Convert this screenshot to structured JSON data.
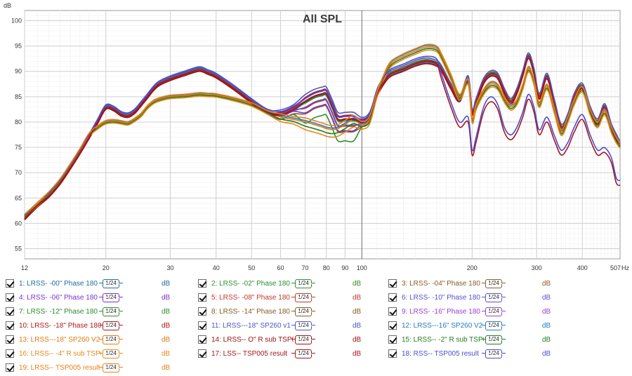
{
  "chart_data": {
    "type": "line",
    "title": "All SPL",
    "ylabel": "dB",
    "xlabel": "",
    "x_unit": "Hz",
    "xscale": "log",
    "xlim": [
      12,
      507
    ],
    "ylim": [
      53,
      102
    ],
    "grid": true,
    "y_ticks": [
      55,
      60,
      65,
      70,
      75,
      80,
      85,
      90,
      95,
      100
    ],
    "x_ticks": [
      12,
      20,
      30,
      40,
      50,
      60,
      70,
      80,
      90,
      100,
      200,
      300,
      400
    ],
    "x_tick_labels": [
      "12",
      "20",
      "30",
      "40",
      "50",
      "60",
      "70",
      "80",
      "90",
      "100",
      "200",
      "300",
      "400"
    ],
    "x_end_label": "507",
    "groups": {
      "x": [
        12,
        13,
        14,
        15,
        16,
        17,
        18,
        19,
        20,
        21,
        22,
        23,
        24,
        25,
        26,
        27,
        28,
        30,
        33,
        36,
        38,
        40,
        45,
        50,
        55,
        60,
        65,
        70,
        74,
        78,
        80,
        83,
        86,
        90,
        95,
        100,
        105,
        110,
        115,
        120,
        130,
        140,
        150,
        160,
        165,
        175,
        185,
        195,
        200,
        205,
        215,
        225,
        235,
        245,
        255,
        265,
        275,
        285,
        295,
        305,
        320,
        335,
        350,
        365,
        380,
        400,
        420,
        440,
        460,
        480,
        495,
        507
      ],
      "high_bass": [
        61,
        63.5,
        65.5,
        68,
        71,
        74,
        77,
        80,
        82.8,
        82.5,
        81.5,
        81.2,
        82,
        83.5,
        85,
        86.5,
        87.5,
        88.5,
        89.5,
        90.3,
        89.7,
        89,
        86.5,
        84,
        82,
        81.5,
        82.5,
        84,
        85,
        85.5,
        85.5,
        83,
        80.5,
        80.5,
        80.5,
        80,
        81,
        85.5,
        88,
        89.5,
        90.5,
        91.5,
        92,
        91.5,
        90.5,
        87,
        84.5,
        88.5,
        82,
        84,
        88,
        89.5,
        89,
        86,
        84,
        86,
        89.5,
        93,
        90,
        85,
        89,
        84,
        79,
        81,
        85,
        87,
        82.5,
        80,
        83,
        79,
        77,
        75.5
      ],
      "low_bass": [
        61.5,
        63.8,
        66,
        68.5,
        71.5,
        74.5,
        77.5,
        79,
        80,
        80.2,
        80,
        79.8,
        80.5,
        81.5,
        83,
        84,
        84.5,
        85,
        85.2,
        85.5,
        85.4,
        85.3,
        84.5,
        83.5,
        82,
        81,
        80.5,
        80,
        79.5,
        79,
        78.7,
        78.5,
        78.7,
        79.5,
        80.5,
        79.5,
        80.5,
        85.5,
        89,
        91.5,
        93,
        94,
        94.8,
        94.5,
        93,
        89,
        85,
        88,
        80.5,
        83,
        86,
        87.5,
        87,
        84.5,
        83,
        84,
        87,
        90.5,
        88,
        83.5,
        87,
        82.5,
        78,
        80.5,
        84,
        86.5,
        82,
        79.5,
        82,
        78.5,
        76.5,
        75.5
      ],
      "tsp": [
        61,
        63.5,
        65.5,
        68,
        71,
        74,
        77,
        80,
        82.8,
        82.5,
        81.5,
        81.2,
        82,
        83.5,
        85,
        86.5,
        87.5,
        88.5,
        89.5,
        90.3,
        89.7,
        89,
        86.5,
        84,
        82,
        81.5,
        82.5,
        84,
        85,
        85.5,
        85.5,
        83,
        80.5,
        80.5,
        80.5,
        80,
        81,
        85.5,
        88,
        89.5,
        90.5,
        91.5,
        92,
        91.5,
        88.5,
        83,
        79,
        80,
        73.5,
        76,
        82,
        84,
        82.5,
        78,
        76.5,
        78,
        81,
        84.5,
        82,
        77.5,
        80,
        76.5,
        73.5,
        75,
        78,
        80.5,
        76.5,
        73.5,
        74,
        72,
        68,
        67.5
      ]
    },
    "series": [
      {
        "name": "1: LRSS- -00\" Phase 180",
        "color": "#1f6f9f",
        "group": "high_bass",
        "offset": -0.1,
        "mid_shift": -0.1,
        "dip_shift": 0
      },
      {
        "name": "2: LRSS- -02\" Phase 180",
        "color": "#2c8f2c",
        "group": "high_bass",
        "offset": -0.2,
        "mid_shift": -0.8,
        "dip_shift": -3.2
      },
      {
        "name": "3: LRSS- -04\" Phase 180",
        "color": "#8b5a2b",
        "group": "high_bass",
        "offset": -0.3,
        "mid_shift": -0.6,
        "dip_shift": -1.5
      },
      {
        "name": "4: LRSS- -06\" Phase 180",
        "color": "#7b32d4",
        "group": "high_bass",
        "offset": 0.1,
        "mid_shift": -0.5,
        "dip_shift": -1.8
      },
      {
        "name": "5: LRSS- -08\" Phase 180",
        "color": "#c0392b",
        "group": "high_bass",
        "offset": 0.2,
        "mid_shift": -0.3,
        "dip_shift": -1.2
      },
      {
        "name": "6: LRSS- -10\" Phase 180",
        "color": "#5b4fd4",
        "group": "high_bass",
        "offset": -0.1,
        "mid_shift": -0.2,
        "dip_shift": -0.8
      },
      {
        "name": "7: LRSS- -12\" Phase 180",
        "color": "#2e8b2e",
        "group": "high_bass",
        "offset": 0.2,
        "mid_shift": 0,
        "dip_shift": -0.5
      },
      {
        "name": "8: LRSS- -14\" Phase 180",
        "color": "#8a5a1e",
        "group": "high_bass",
        "offset": 0.1,
        "mid_shift": 0.2,
        "dip_shift": -0.2
      },
      {
        "name": "9: LRSS- -16\" Phase 180",
        "color": "#9a3fd6",
        "group": "high_bass",
        "offset": 0,
        "mid_shift": 0.3,
        "dip_shift": 0.3
      },
      {
        "name": "10: LRSS- -18\" Phase 180",
        "color": "#b01818",
        "group": "high_bass",
        "offset": 0,
        "mid_shift": 0.4,
        "dip_shift": 0.4
      },
      {
        "name": "11: LRSS---18\" SP260 v1",
        "color": "#4a55c8",
        "group": "high_bass",
        "offset": 0.4,
        "mid_shift": 0.5,
        "dip_shift": 0.5
      },
      {
        "name": "12: LRSS---16\" SP260 V2",
        "color": "#2479c4",
        "group": "low_bass",
        "offset": 0.2,
        "mid_shift": 0.1,
        "dip_shift": 0
      },
      {
        "name": "13: LRSS---18\" SP260 V2",
        "color": "#e07a10",
        "group": "low_bass",
        "offset": 0,
        "mid_shift": 0,
        "dip_shift": 0
      },
      {
        "name": "14: LRSS-- O\" R sub TSP0",
        "color": "#a01010",
        "group": "high_bass",
        "offset": -0.3,
        "mid_shift": 0.2,
        "dip_shift": 0.2
      },
      {
        "name": "15: LRSS-- -2\" R sub TSP0",
        "color": "#1f7f1f",
        "group": "low_bass",
        "offset": -0.2,
        "mid_shift": -0.2,
        "dip_shift": -0.4
      },
      {
        "name": "16: LRSS-- -4\" R sub TSP0",
        "color": "#e68a1e",
        "group": "low_bass",
        "offset": -0.4,
        "mid_shift": -0.5,
        "dip_shift": -0.6
      },
      {
        "name": "17: LSS-- TSP005 result",
        "color": "#a8141e",
        "group": "tsp",
        "offset": 0,
        "mid_shift": 0,
        "dip_shift": 0
      },
      {
        "name": "18: RSS-- TSP005 result",
        "color": "#4c4ccf",
        "group": "tsp",
        "offset": 0.6,
        "mid_shift": 0,
        "dip_shift": 0
      },
      {
        "name": "19: LRSS-- TSP005 result",
        "color": "#e8801a",
        "group": "low_bass",
        "offset": 0.3,
        "mid_shift": 0.3,
        "dip_shift": 0.2
      }
    ]
  },
  "legend": {
    "items": [
      {
        "label": "1: LRSS- -00\" Phase 180",
        "color": "#1f6f9f",
        "smoothing": "1/24",
        "unit": "dB"
      },
      {
        "label": "2: LRSS- -02\" Phase 180",
        "color": "#2c8f2c",
        "smoothing": "1/24",
        "unit": "dB"
      },
      {
        "label": "3: LRSS- -04\" Phase 180",
        "color": "#8b5a2b",
        "smoothing": "1/24",
        "unit": "dB"
      },
      {
        "label": "4: LRSS- -06\" Phase 180",
        "color": "#7b32d4",
        "smoothing": "1/24",
        "unit": "dB"
      },
      {
        "label": "5: LRSS- -08\" Phase 180",
        "color": "#c0392b",
        "smoothing": "1/24",
        "unit": "dB"
      },
      {
        "label": "6: LRSS- -10\" Phase 180",
        "color": "#5b4fd4",
        "smoothing": "1/24",
        "unit": "dB"
      },
      {
        "label": "7: LRSS- -12\" Phase 180",
        "color": "#2e8b2e",
        "smoothing": "1/24",
        "unit": "dB"
      },
      {
        "label": "8: LRSS- -14\" Phase 180",
        "color": "#8a5a1e",
        "smoothing": "1/24",
        "unit": "dB"
      },
      {
        "label": "9: LRSS- -16\" Phase 180",
        "color": "#9a3fd6",
        "smoothing": "1/24",
        "unit": "dB"
      },
      {
        "label": "10: LRSS- -18\" Phase 180",
        "color": "#b01818",
        "smoothing": "1/24",
        "unit": "dB"
      },
      {
        "label": "11: LRSS---18\" SP260 v1",
        "color": "#4a55c8",
        "smoothing": "1/24",
        "unit": "dB"
      },
      {
        "label": "12: LRSS---16\"   SP260 V2",
        "color": "#2479c4",
        "smoothing": "1/24",
        "unit": "dB"
      },
      {
        "label": "13: LRSS---18\"  SP260 V2",
        "color": "#e07a10",
        "smoothing": "1/24",
        "unit": "dB"
      },
      {
        "label": "14: LRSS-- O\" R sub TSP0",
        "color": "#a01010",
        "smoothing": "1/24",
        "unit": "dB"
      },
      {
        "label": "15: LRSS-- -2\" R sub TSP0",
        "color": "#1f7f1f",
        "smoothing": "1/24",
        "unit": "dB"
      },
      {
        "label": "16: LRSS-- -4\" R sub TSP0",
        "color": "#e68a1e",
        "smoothing": "1/24",
        "unit": "dB"
      },
      {
        "label": "17: LSS-- TSP005 result",
        "color": "#a8141e",
        "smoothing": "1/24",
        "unit": "dB"
      },
      {
        "label": "18: RSS-- TSP005 result",
        "color": "#4c4ccf",
        "smoothing": "1/24",
        "unit": "dB"
      },
      {
        "label": "19: LRSS-- TSP005 result",
        "color": "#e8801a",
        "smoothing": "1/24",
        "unit": "dB"
      }
    ]
  }
}
